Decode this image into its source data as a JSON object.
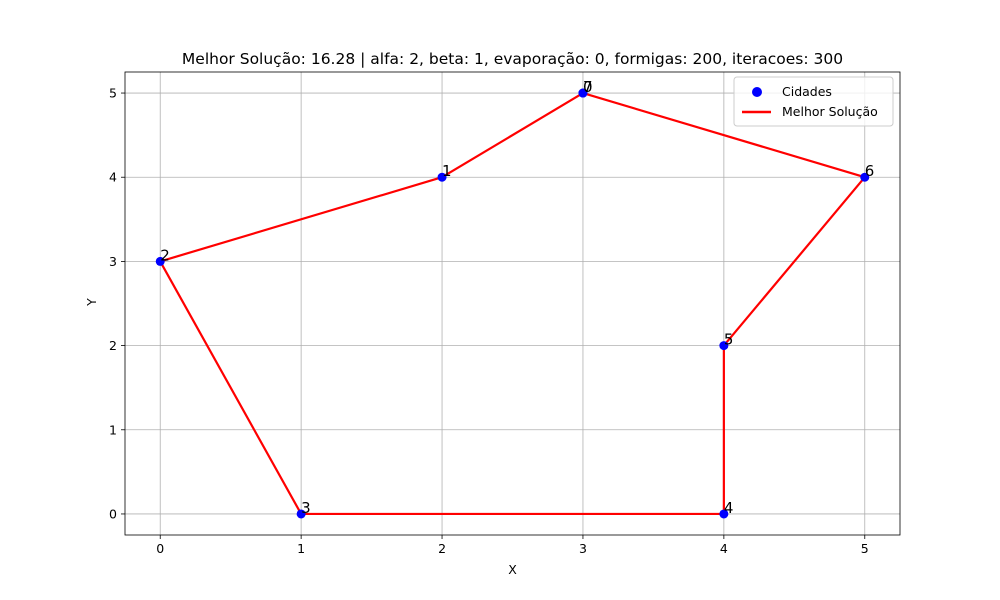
{
  "chart_data": {
    "type": "scatter",
    "title": "Melhor Solução: 16.28 | alfa: 2, beta: 1, evaporação: 0, formigas: 200, iteracoes: 300",
    "xlabel": "X",
    "ylabel": "Y",
    "xlim": [
      -0.25,
      5.25
    ],
    "ylim": [
      -0.25,
      5.25
    ],
    "xticks": [
      0,
      1,
      2,
      3,
      4,
      5
    ],
    "yticks": [
      0,
      1,
      2,
      3,
      4,
      5
    ],
    "grid": true,
    "legend_position": "upper-right",
    "series": [
      {
        "name": "Cidades",
        "kind": "scatter",
        "color": "#0000ff",
        "points": [
          {
            "label": "0",
            "x": 3,
            "y": 5
          },
          {
            "label": "1",
            "x": 2,
            "y": 4
          },
          {
            "label": "2",
            "x": 0,
            "y": 3
          },
          {
            "label": "3",
            "x": 1,
            "y": 0
          },
          {
            "label": "4",
            "x": 4,
            "y": 0
          },
          {
            "label": "5",
            "x": 4,
            "y": 2
          },
          {
            "label": "6",
            "x": 5,
            "y": 4
          },
          {
            "label": "7",
            "x": 3,
            "y": 5
          }
        ]
      },
      {
        "name": "Melhor Solução",
        "kind": "line",
        "color": "#ff0000",
        "path": [
          {
            "x": 3,
            "y": 5
          },
          {
            "x": 2,
            "y": 4
          },
          {
            "x": 0,
            "y": 3
          },
          {
            "x": 1,
            "y": 0
          },
          {
            "x": 4,
            "y": 0
          },
          {
            "x": 4,
            "y": 2
          },
          {
            "x": 5,
            "y": 4
          },
          {
            "x": 3,
            "y": 5
          }
        ]
      }
    ]
  }
}
